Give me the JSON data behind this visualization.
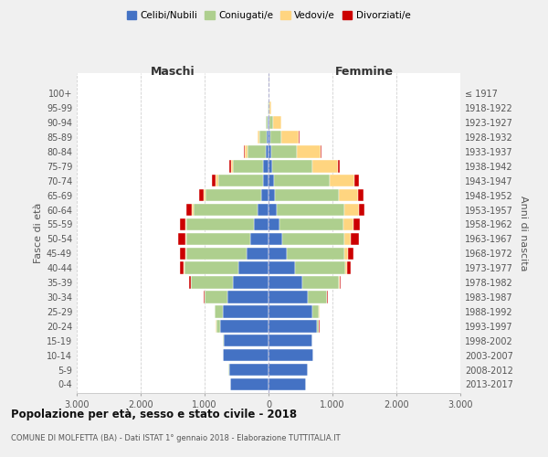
{
  "age_groups": [
    "0-4",
    "5-9",
    "10-14",
    "15-19",
    "20-24",
    "25-29",
    "30-34",
    "35-39",
    "40-44",
    "45-49",
    "50-54",
    "55-59",
    "60-64",
    "65-69",
    "70-74",
    "75-79",
    "80-84",
    "85-89",
    "90-94",
    "95-99",
    "100+"
  ],
  "birth_years": [
    "2013-2017",
    "2008-2012",
    "2003-2007",
    "1998-2002",
    "1993-1997",
    "1988-1992",
    "1983-1987",
    "1978-1982",
    "1973-1977",
    "1968-1972",
    "1963-1967",
    "1958-1962",
    "1953-1957",
    "1948-1952",
    "1943-1947",
    "1938-1942",
    "1933-1937",
    "1928-1932",
    "1923-1927",
    "1918-1922",
    "≤ 1917"
  ],
  "male": {
    "celibi": [
      600,
      620,
      710,
      700,
      760,
      720,
      650,
      560,
      470,
      350,
      290,
      230,
      170,
      120,
      90,
      80,
      50,
      30,
      10,
      5,
      2
    ],
    "coniugati": [
      2,
      2,
      5,
      10,
      60,
      120,
      350,
      650,
      850,
      940,
      1000,
      1050,
      1000,
      870,
      700,
      480,
      280,
      120,
      30,
      5,
      2
    ],
    "vedovi": [
      0,
      0,
      0,
      0,
      5,
      5,
      5,
      5,
      5,
      10,
      15,
      20,
      30,
      30,
      40,
      30,
      40,
      20,
      10,
      0,
      0
    ],
    "divorziati": [
      0,
      0,
      0,
      0,
      2,
      5,
      15,
      30,
      60,
      80,
      110,
      90,
      80,
      70,
      60,
      30,
      10,
      5,
      0,
      0,
      0
    ]
  },
  "female": {
    "nubili": [
      590,
      610,
      700,
      680,
      750,
      690,
      620,
      530,
      420,
      280,
      210,
      170,
      130,
      100,
      80,
      60,
      40,
      25,
      10,
      5,
      2
    ],
    "coniugate": [
      2,
      2,
      3,
      8,
      40,
      100,
      290,
      570,
      780,
      900,
      980,
      1000,
      1050,
      1000,
      880,
      620,
      400,
      180,
      60,
      10,
      2
    ],
    "vedove": [
      0,
      0,
      0,
      0,
      2,
      5,
      5,
      10,
      30,
      60,
      100,
      160,
      230,
      300,
      380,
      400,
      380,
      270,
      130,
      30,
      3
    ],
    "divorziate": [
      0,
      0,
      0,
      0,
      2,
      3,
      10,
      25,
      60,
      90,
      130,
      100,
      90,
      80,
      70,
      35,
      15,
      5,
      0,
      0,
      0
    ]
  },
  "colors": {
    "celibi": "#4472C4",
    "coniugati": "#AECF8E",
    "vedovi": "#FFD580",
    "divorziati": "#CC0000"
  },
  "xlim": 3000,
  "title": "Popolazione per età, sesso e stato civile - 2018",
  "subtitle": "COMUNE DI MOLFETTA (BA) - Dati ISTAT 1° gennaio 2018 - Elaborazione TUTTITALIA.IT",
  "ylabel": "Fasce di età",
  "y2label": "Anni di nascita",
  "xlabel_left": "Maschi",
  "xlabel_right": "Femmine",
  "legend_labels": [
    "Celibi/Nubili",
    "Coniugati/e",
    "Vedovi/e",
    "Divorziati/e"
  ],
  "bg_color": "#f0f0f0",
  "plot_bg_color": "#ffffff",
  "tick_vals": [
    -3000,
    -2000,
    -1000,
    0,
    1000,
    2000,
    3000
  ],
  "tick_labels": [
    "3.000",
    "2.000",
    "1.000",
    "0",
    "1.000",
    "2.000",
    "3.000"
  ]
}
